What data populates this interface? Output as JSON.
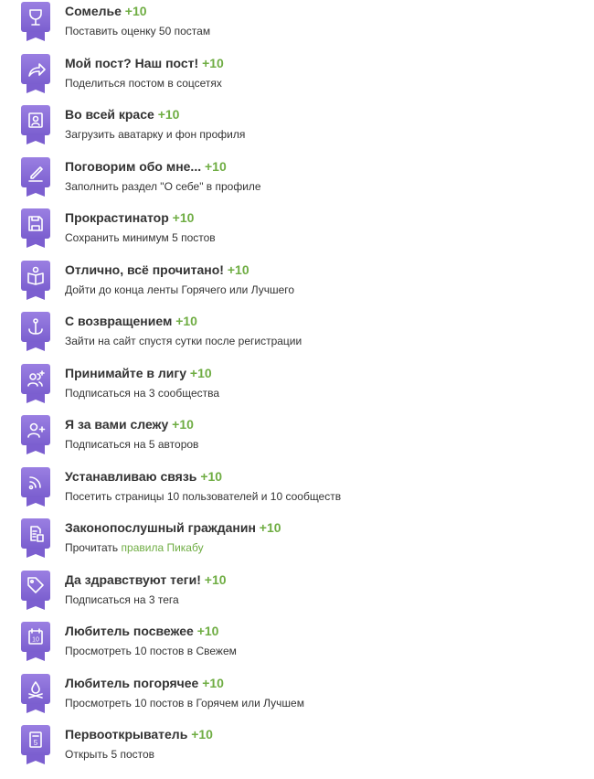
{
  "accent": "#8c6fd9",
  "points_color": "#6fad43",
  "achievements": [
    {
      "icon": "wine-glass-icon",
      "title": "Сомелье",
      "points": "+10",
      "desc": "Поставить оценку 50 постам"
    },
    {
      "icon": "share-arrow-icon",
      "title": "Мой пост? Наш пост!",
      "points": "+10",
      "desc": "Поделиться постом в соцсетях"
    },
    {
      "icon": "profile-portrait-icon",
      "title": "Во всей красе",
      "points": "+10",
      "desc": "Загрузить аватарку и фон профиля"
    },
    {
      "icon": "pencil-icon",
      "title": "Поговорим обо мне...",
      "points": "+10",
      "desc": "Заполнить раздел \"О себе\" в профиле"
    },
    {
      "icon": "floppy-disk-icon",
      "title": "Прокрастинатор",
      "points": "+10",
      "desc": "Сохранить минимум 5 постов"
    },
    {
      "icon": "open-book-icon",
      "title": "Отлично, всё прочитано!",
      "points": "+10",
      "desc": "Дойти до конца ленты Горячего или Лучшего"
    },
    {
      "icon": "anchor-icon",
      "title": "С возвращением",
      "points": "+10",
      "desc": "Зайти на сайт спустя сутки после регистрации"
    },
    {
      "icon": "users-sparkle-icon",
      "title": "Принимайте в лигу",
      "points": "+10",
      "desc": "Подписаться на 3 сообщества"
    },
    {
      "icon": "user-plus-icon",
      "title": "Я за вами слежу",
      "points": "+10",
      "desc": "Подписаться на 5 авторов"
    },
    {
      "icon": "rss-icon",
      "title": "Устанавливаю связь",
      "points": "+10",
      "desc": "Посетить страницы 10 пользователей и 10 сообществ"
    },
    {
      "icon": "rules-document-icon",
      "title": "Законопослушный гражданин",
      "points": "+10",
      "desc": "Прочитать",
      "link": "правила Пикабу"
    },
    {
      "icon": "tag-icon",
      "title": "Да здравствуют теги!",
      "points": "+10",
      "desc": "Подписаться на 3 тега"
    },
    {
      "icon": "calendar-icon",
      "title": "Любитель посвежее",
      "points": "+10",
      "desc": "Просмотреть 10 постов в Свежем",
      "icon_text": "10"
    },
    {
      "icon": "campfire-icon",
      "title": "Любитель погорячее",
      "points": "+10",
      "desc": "Просмотреть 10 постов в Горячем или Лучшем"
    },
    {
      "icon": "document-five-icon",
      "title": "Первооткрыватель",
      "points": "+10",
      "desc": "Открыть 5 постов",
      "icon_text": "5"
    }
  ]
}
